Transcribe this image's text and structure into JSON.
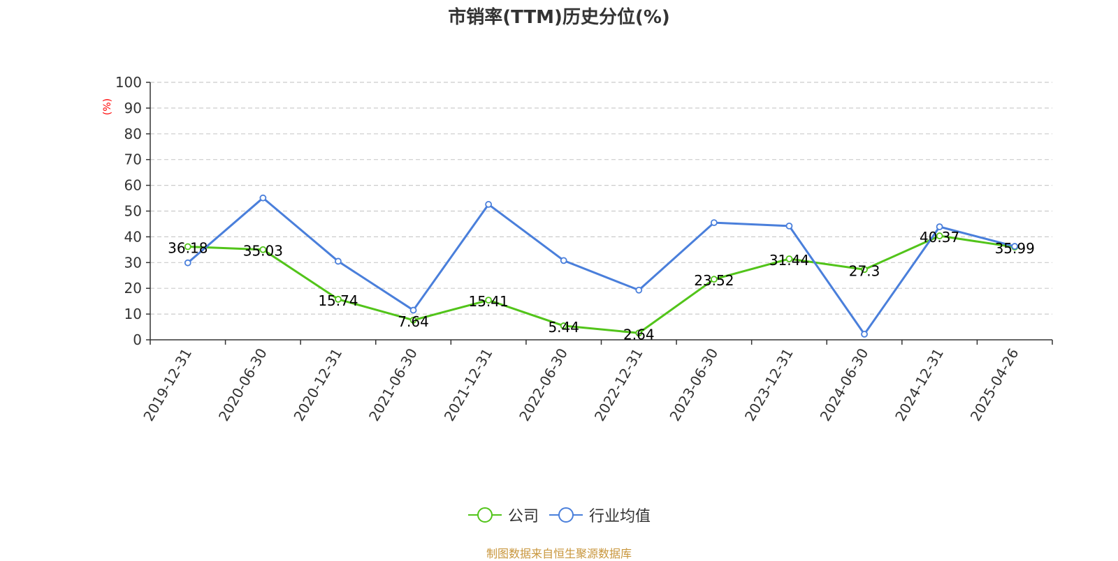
{
  "chart_data": {
    "type": "line",
    "title": "市销率(TTM)历史分位(%)",
    "ylabel": "(%)",
    "xlabel": "",
    "ylim": [
      0,
      100
    ],
    "yticks": [
      0,
      10,
      20,
      30,
      40,
      50,
      60,
      70,
      80,
      90,
      100
    ],
    "grid": "horizontal-dashed",
    "legend_position": "bottom-center",
    "categories": [
      "2019-12-31",
      "2020-06-30",
      "2020-12-31",
      "2021-06-30",
      "2021-12-31",
      "2022-06-30",
      "2022-12-31",
      "2023-06-30",
      "2023-12-31",
      "2024-06-30",
      "2024-12-31",
      "2025-04-26"
    ],
    "series": [
      {
        "name": "公司",
        "color": "#52c41a",
        "values": [
          36.18,
          35.03,
          15.74,
          7.64,
          15.41,
          5.44,
          2.64,
          23.52,
          31.44,
          27.3,
          40.37,
          35.99
        ],
        "labels": [
          "36.18",
          "35.03",
          "15.74",
          "7.64",
          "15.41",
          "5.44",
          "2.64",
          "23.52",
          "31.44",
          "27.3",
          "40.37",
          "35.99"
        ]
      },
      {
        "name": "行业均值",
        "color": "#4a7fdb",
        "values": [
          29.9,
          55.1,
          30.5,
          11.5,
          52.6,
          30.8,
          19.3,
          45.5,
          44.2,
          2.2,
          43.9,
          36.3
        ]
      }
    ]
  },
  "colors": {
    "ylabel": "#ff0000",
    "source": "#c8963c",
    "grid": "#cccccc",
    "axis": "#333333"
  },
  "footer": {
    "source": "制图数据来自恒生聚源数据库"
  }
}
